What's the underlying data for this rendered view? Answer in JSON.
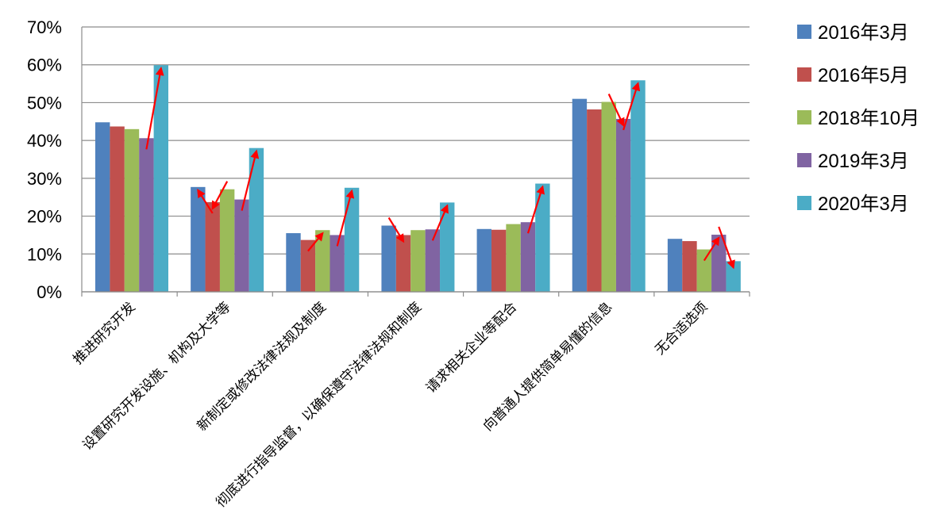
{
  "chart_data": {
    "type": "bar",
    "title": "",
    "xlabel": "",
    "ylabel": "",
    "ylim": [
      0,
      70
    ],
    "yticks": [
      "0%",
      "10%",
      "20%",
      "30%",
      "40%",
      "50%",
      "60%",
      "70%"
    ],
    "grid": true,
    "legend_position": "right",
    "categories": [
      "推进研究开发",
      "设置研究开发设施、机构及大学等",
      "新制定或修改法律法规及制度",
      "彻底进行指导监督，以确保遵守法律法规和制度",
      "请求相关企业等配合",
      "向普通人提供简单易懂的信息",
      "无合适选项"
    ],
    "series": [
      {
        "name": "2016年3月",
        "color": "#4F81BD",
        "values": [
          44.8,
          27.7,
          15.5,
          17.5,
          16.6,
          51.0,
          14.0
        ]
      },
      {
        "name": "2016年5月",
        "color": "#C0504D",
        "values": [
          43.7,
          23.7,
          13.7,
          15.0,
          16.4,
          48.2,
          13.4
        ]
      },
      {
        "name": "2018年10月",
        "color": "#9BBB59",
        "values": [
          43.0,
          27.1,
          16.3,
          16.3,
          17.9,
          50.2,
          11.2
        ]
      },
      {
        "name": "2019年3月",
        "color": "#8064A2",
        "values": [
          40.6,
          24.4,
          15.0,
          16.5,
          18.4,
          45.7,
          15.1
        ]
      },
      {
        "name": "2020年3月",
        "color": "#4BACC6",
        "values": [
          59.9,
          38.0,
          27.5,
          23.6,
          28.6,
          55.9,
          8.1
        ]
      }
    ],
    "annotations": {
      "type": "arrows",
      "color": "#FF0000",
      "items": [
        {
          "category": 0,
          "from_series": 3,
          "to_series": 4
        },
        {
          "category": 1,
          "from_series": 1,
          "to_series": 0
        },
        {
          "category": 1,
          "from_series": 2,
          "to_series": 1
        },
        {
          "category": 1,
          "from_series": 3,
          "to_series": 4
        },
        {
          "category": 2,
          "from_series": 1,
          "to_series": 2
        },
        {
          "category": 2,
          "from_series": 3,
          "to_series": 4
        },
        {
          "category": 3,
          "from_series": 0,
          "to_series": 1
        },
        {
          "category": 3,
          "from_series": 3,
          "to_series": 4
        },
        {
          "category": 4,
          "from_series": 3,
          "to_series": 4
        },
        {
          "category": 5,
          "from_series": 2,
          "to_series": 3
        },
        {
          "category": 5,
          "from_series": 3,
          "to_series": 4
        },
        {
          "category": 6,
          "from_series": 2,
          "to_series": 3
        },
        {
          "category": 6,
          "from_series": 3,
          "to_series": 4
        }
      ]
    }
  }
}
